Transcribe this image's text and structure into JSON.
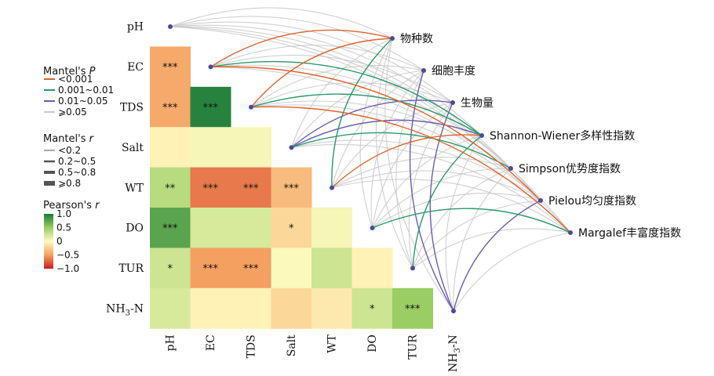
{
  "chart_data": {
    "type": "heatmap",
    "variables": [
      "pH",
      "EC",
      "TDS",
      "Salt",
      "WT",
      "DO",
      "TUR",
      "NH3-N"
    ],
    "row_labels": [
      {
        "main": "pH",
        "sub": "",
        "tail": ""
      },
      {
        "main": "EC",
        "sub": "",
        "tail": ""
      },
      {
        "main": "TDS",
        "sub": "",
        "tail": ""
      },
      {
        "main": "Salt",
        "sub": "",
        "tail": ""
      },
      {
        "main": "WT",
        "sub": "",
        "tail": ""
      },
      {
        "main": "DO",
        "sub": "",
        "tail": ""
      },
      {
        "main": "TUR",
        "sub": "",
        "tail": ""
      },
      {
        "main": "NH",
        "sub": "3",
        "tail": "-N"
      }
    ],
    "pearson_cells": [
      {
        "row": 1,
        "col": 0,
        "r": -0.45,
        "sig": "***"
      },
      {
        "row": 2,
        "col": 0,
        "r": -0.45,
        "sig": "***"
      },
      {
        "row": 2,
        "col": 1,
        "r": 0.95,
        "sig": "***"
      },
      {
        "row": 3,
        "col": 0,
        "r": -0.05,
        "sig": ""
      },
      {
        "row": 3,
        "col": 1,
        "r": 0.05,
        "sig": ""
      },
      {
        "row": 3,
        "col": 2,
        "r": 0.05,
        "sig": ""
      },
      {
        "row": 4,
        "col": 0,
        "r": 0.35,
        "sig": "**"
      },
      {
        "row": 4,
        "col": 1,
        "r": -0.65,
        "sig": "***"
      },
      {
        "row": 4,
        "col": 2,
        "r": -0.65,
        "sig": "***"
      },
      {
        "row": 4,
        "col": 3,
        "r": -0.35,
        "sig": "***"
      },
      {
        "row": 5,
        "col": 0,
        "r": 0.75,
        "sig": "***"
      },
      {
        "row": 5,
        "col": 1,
        "r": 0.2,
        "sig": ""
      },
      {
        "row": 5,
        "col": 2,
        "r": 0.2,
        "sig": ""
      },
      {
        "row": 5,
        "col": 3,
        "r": -0.2,
        "sig": "*"
      },
      {
        "row": 5,
        "col": 4,
        "r": 0.05,
        "sig": ""
      },
      {
        "row": 6,
        "col": 0,
        "r": 0.25,
        "sig": "*"
      },
      {
        "row": 6,
        "col": 1,
        "r": -0.5,
        "sig": "***"
      },
      {
        "row": 6,
        "col": 2,
        "r": -0.5,
        "sig": "***"
      },
      {
        "row": 6,
        "col": 3,
        "r": 0.02,
        "sig": ""
      },
      {
        "row": 6,
        "col": 4,
        "r": 0.25,
        "sig": ""
      },
      {
        "row": 6,
        "col": 5,
        "r": -0.05,
        "sig": ""
      },
      {
        "row": 7,
        "col": 0,
        "r": 0.2,
        "sig": ""
      },
      {
        "row": 7,
        "col": 1,
        "r": -0.05,
        "sig": ""
      },
      {
        "row": 7,
        "col": 2,
        "r": -0.05,
        "sig": ""
      },
      {
        "row": 7,
        "col": 3,
        "r": -0.2,
        "sig": ""
      },
      {
        "row": 7,
        "col": 4,
        "r": -0.1,
        "sig": ""
      },
      {
        "row": 7,
        "col": 5,
        "r": 0.25,
        "sig": "*"
      },
      {
        "row": 7,
        "col": 6,
        "r": 0.5,
        "sig": "***"
      }
    ],
    "targets": [
      "物种数",
      "细胞丰度",
      "生物量",
      "Shannon-Wiener多样性指数",
      "Simpson优势度指数",
      "Pielou均匀度指数",
      "Margalef丰富度指数"
    ],
    "mantel_links": [
      {
        "from": 0,
        "to": 0,
        "p": 3,
        "r": 0
      },
      {
        "from": 0,
        "to": 1,
        "p": 3,
        "r": 0
      },
      {
        "from": 0,
        "to": 2,
        "p": 3,
        "r": 0
      },
      {
        "from": 0,
        "to": 3,
        "p": 3,
        "r": 0
      },
      {
        "from": 0,
        "to": 4,
        "p": 3,
        "r": 0
      },
      {
        "from": 0,
        "to": 5,
        "p": 3,
        "r": 0
      },
      {
        "from": 0,
        "to": 6,
        "p": 3,
        "r": 0
      },
      {
        "from": 1,
        "to": 0,
        "p": 0,
        "r": 0
      },
      {
        "from": 1,
        "to": 1,
        "p": 3,
        "r": 0
      },
      {
        "from": 1,
        "to": 2,
        "p": 3,
        "r": 0
      },
      {
        "from": 1,
        "to": 3,
        "p": 1,
        "r": 0
      },
      {
        "from": 1,
        "to": 4,
        "p": 3,
        "r": 0
      },
      {
        "from": 1,
        "to": 5,
        "p": 0,
        "r": 0
      },
      {
        "from": 1,
        "to": 6,
        "p": 3,
        "r": 0
      },
      {
        "from": 2,
        "to": 0,
        "p": 0,
        "r": 0
      },
      {
        "from": 2,
        "to": 1,
        "p": 3,
        "r": 0
      },
      {
        "from": 2,
        "to": 2,
        "p": 3,
        "r": 0
      },
      {
        "from": 2,
        "to": 3,
        "p": 1,
        "r": 0
      },
      {
        "from": 2,
        "to": 4,
        "p": 3,
        "r": 0
      },
      {
        "from": 2,
        "to": 5,
        "p": 3,
        "r": 0
      },
      {
        "from": 2,
        "to": 6,
        "p": 0,
        "r": 0
      },
      {
        "from": 3,
        "to": 0,
        "p": 3,
        "r": 0
      },
      {
        "from": 3,
        "to": 1,
        "p": 3,
        "r": 0
      },
      {
        "from": 3,
        "to": 2,
        "p": 2,
        "r": 0
      },
      {
        "from": 3,
        "to": 3,
        "p": 2,
        "r": 0
      },
      {
        "from": 3,
        "to": 4,
        "p": 1,
        "r": 0
      },
      {
        "from": 3,
        "to": 5,
        "p": 3,
        "r": 0
      },
      {
        "from": 3,
        "to": 6,
        "p": 3,
        "r": 0
      },
      {
        "from": 4,
        "to": 0,
        "p": 1,
        "r": 0
      },
      {
        "from": 4,
        "to": 1,
        "p": 3,
        "r": 0
      },
      {
        "from": 4,
        "to": 2,
        "p": 3,
        "r": 0
      },
      {
        "from": 4,
        "to": 3,
        "p": 0,
        "r": 0
      },
      {
        "from": 4,
        "to": 4,
        "p": 3,
        "r": 0
      },
      {
        "from": 4,
        "to": 5,
        "p": 3,
        "r": 0
      },
      {
        "from": 4,
        "to": 6,
        "p": 3,
        "r": 0
      },
      {
        "from": 5,
        "to": 0,
        "p": 3,
        "r": 0
      },
      {
        "from": 5,
        "to": 1,
        "p": 3,
        "r": 0
      },
      {
        "from": 5,
        "to": 2,
        "p": 3,
        "r": 0
      },
      {
        "from": 5,
        "to": 3,
        "p": 3,
        "r": 0
      },
      {
        "from": 5,
        "to": 4,
        "p": 3,
        "r": 0
      },
      {
        "from": 5,
        "to": 5,
        "p": 3,
        "r": 0
      },
      {
        "from": 5,
        "to": 6,
        "p": 1,
        "r": 0
      },
      {
        "from": 6,
        "to": 0,
        "p": 3,
        "r": 0
      },
      {
        "from": 6,
        "to": 1,
        "p": 3,
        "r": 0
      },
      {
        "from": 6,
        "to": 2,
        "p": 3,
        "r": 0
      },
      {
        "from": 6,
        "to": 3,
        "p": 1,
        "r": 0
      },
      {
        "from": 6,
        "to": 4,
        "p": 3,
        "r": 0
      },
      {
        "from": 6,
        "to": 5,
        "p": 3,
        "r": 0
      },
      {
        "from": 6,
        "to": 6,
        "p": 3,
        "r": 0
      },
      {
        "from": 7,
        "to": 0,
        "p": 3,
        "r": 0
      },
      {
        "from": 7,
        "to": 1,
        "p": 2,
        "r": 0
      },
      {
        "from": 7,
        "to": 2,
        "p": 2,
        "r": 0
      },
      {
        "from": 7,
        "to": 3,
        "p": 3,
        "r": 0
      },
      {
        "from": 7,
        "to": 4,
        "p": 3,
        "r": 0
      },
      {
        "from": 7,
        "to": 5,
        "p": 2,
        "r": 0
      },
      {
        "from": 7,
        "to": 6,
        "p": 3,
        "r": 0
      }
    ],
    "legend_p": {
      "title_main": "Mantel's ",
      "title_italic": "P",
      "items": [
        "<0.001",
        "0.001~0.01",
        "0.01~0.05",
        "⩾0.05"
      ],
      "colors": [
        "#e0622a",
        "#2a9a6a",
        "#6a5fb0",
        "#c8c8c8"
      ]
    },
    "legend_r": {
      "title_main": "Mantel's ",
      "title_italic": "r",
      "items": [
        "<0.2",
        "0.2~0.5",
        "0.5~0.8",
        "⩾0.8"
      ]
    },
    "legend_pearson": {
      "title_main": "Pearson's ",
      "title_italic": "r",
      "ticks": [
        "1.0",
        "0.5",
        "0",
        "−0.5",
        "−1.0"
      ],
      "range": [
        -1,
        1
      ]
    },
    "node_color": "#4a4a9a"
  }
}
